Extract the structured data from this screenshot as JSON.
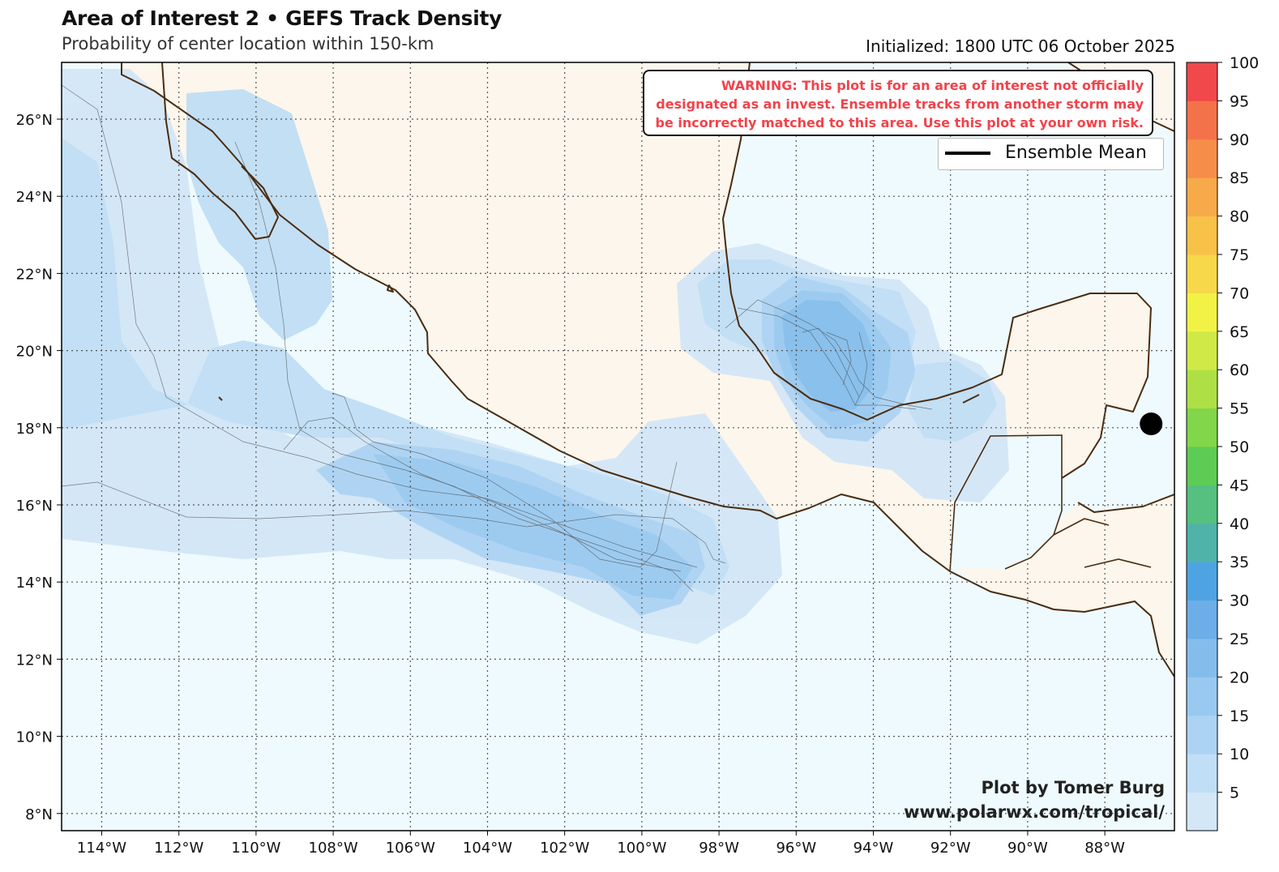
{
  "header": {
    "title": "Area of Interest 2 • GEFS Track Density",
    "subtitle": "Probability of center location within 150-km",
    "initialized": "Initialized: 1800 UTC 06 October 2025"
  },
  "warning": {
    "lines": [
      "WARNING: This plot is for an area of interest not officially",
      "designated as an invest. Ensemble tracks from another storm may",
      "be incorrectly matched to this area. Use this plot at your own risk."
    ]
  },
  "legend": {
    "label": "Ensemble Mean"
  },
  "credits": {
    "author": "Plot by Tomer Burg",
    "url": "www.polarwx.com/tropical/"
  },
  "map": {
    "lon_ticks": [
      "114°W",
      "112°W",
      "110°W",
      "108°W",
      "106°W",
      "104°W",
      "102°W",
      "100°W",
      "98°W",
      "96°W",
      "94°W",
      "92°W",
      "90°W",
      "88°W"
    ],
    "lat_ticks": [
      "26°N",
      "24°N",
      "22°N",
      "20°N",
      "18°N",
      "16°N",
      "14°N",
      "12°N",
      "10°N",
      "8°N"
    ],
    "colors": {
      "ocean": "#eefafe",
      "land": "#fcf6ec",
      "coast": "#4a2c10",
      "grid": "#555555"
    },
    "marker": {
      "lon": -86.8,
      "lat": 18.1,
      "label": ""
    }
  },
  "colorbar": {
    "ticks": [
      "5",
      "10",
      "15",
      "20",
      "25",
      "30",
      "35",
      "40",
      "45",
      "50",
      "55",
      "60",
      "65",
      "70",
      "75",
      "80",
      "85",
      "90",
      "95",
      "100"
    ],
    "colors": [
      "#d3e7f7",
      "#c0def5",
      "#acd3f3",
      "#99c9f0",
      "#84bdec",
      "#6daee8",
      "#4ea4e2",
      "#4fb3a9",
      "#55c07f",
      "#5dcc55",
      "#82d649",
      "#aee046",
      "#d1e947",
      "#f1f245",
      "#f7d84b",
      "#f8c249",
      "#f7aa4a",
      "#f68e49",
      "#f4724a",
      "#f1484c"
    ]
  }
}
